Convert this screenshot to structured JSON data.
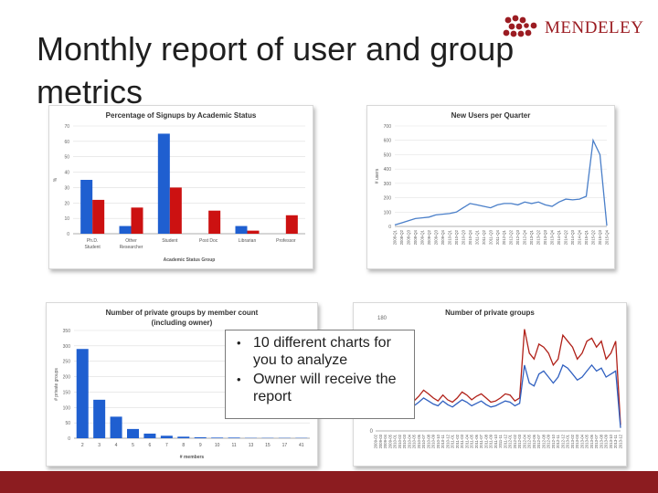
{
  "slide": {
    "title": "Monthly report of user and group metrics",
    "brand": "MENDELEY",
    "brand_color": "#9b1c22",
    "footer_color": "#8c1c20",
    "callout_items": [
      "10 different charts for you to analyze",
      "Owner will receive the report"
    ]
  },
  "chart_data": [
    {
      "type": "bar",
      "title": "Percentage of Signups by Academic Status",
      "xlabel": "Academic Status Group",
      "ylabel": "%",
      "ylim": [
        0,
        70
      ],
      "yticks": [
        0,
        10,
        20,
        30,
        40,
        50,
        60,
        70
      ],
      "categories": [
        "Ph.D. Student",
        "Other Researcher",
        "Student",
        "Post Doc",
        "Librarian",
        "Professor"
      ],
      "series": [
        {
          "color": "#1f5fd0",
          "values": [
            35,
            5,
            65,
            0,
            5,
            0
          ]
        },
        {
          "color": "#cc1111",
          "values": [
            22,
            17,
            30,
            15,
            2,
            12
          ]
        }
      ],
      "grid": true
    },
    {
      "type": "line",
      "title": "New Users per Quarter",
      "ylabel": "# users",
      "ylim": [
        0,
        700
      ],
      "yticks": [
        0,
        100,
        200,
        300,
        400,
        500,
        600,
        700
      ],
      "x": [
        "2008-Q1",
        "2008-Q2",
        "2008-Q3",
        "2008-Q4",
        "2009-Q1",
        "2009-Q2",
        "2009-Q3",
        "2009-Q4",
        "2010-Q1",
        "2010-Q2",
        "2010-Q3",
        "2010-Q4",
        "2011-Q1",
        "2011-Q2",
        "2011-Q3",
        "2011-Q4",
        "2012-Q1",
        "2012-Q2",
        "2012-Q3",
        "2012-Q4",
        "2013-Q1",
        "2013-Q2",
        "2013-Q3",
        "2013-Q4",
        "2014-Q1",
        "2014-Q2",
        "2014-Q3",
        "2014-Q4",
        "2015-Q1",
        "2015-Q2",
        "2015-Q3",
        "2015-Q4"
      ],
      "series": [
        {
          "color": "#4a7fc9",
          "values": [
            10,
            25,
            40,
            55,
            60,
            65,
            80,
            85,
            90,
            100,
            130,
            160,
            150,
            140,
            130,
            150,
            160,
            160,
            150,
            170,
            160,
            170,
            150,
            140,
            170,
            190,
            185,
            190,
            210,
            600,
            500,
            5
          ]
        }
      ],
      "grid": true
    },
    {
      "type": "bar",
      "title": "Number of private groups by member count (including owner)",
      "xlabel": "# members",
      "ylabel": "# private groups",
      "ylim": [
        0,
        350
      ],
      "yticks": [
        0,
        50,
        100,
        150,
        200,
        250,
        300,
        350
      ],
      "categories": [
        "2",
        "3",
        "4",
        "5",
        "6",
        "7",
        "8",
        "9",
        "10",
        "11",
        "13",
        "15",
        "17",
        "41"
      ],
      "series": [
        {
          "color": "#1f5fd0",
          "values": [
            290,
            125,
            70,
            30,
            15,
            8,
            5,
            3,
            2,
            2,
            1,
            1,
            1,
            1
          ]
        }
      ],
      "grid": true
    },
    {
      "type": "line",
      "title": "Number of private groups",
      "ylabel": "",
      "ylim": [
        0,
        180
      ],
      "ytick_labels": [
        "0",
        "180"
      ],
      "x": [
        "2009-02",
        "2009-03",
        "2009-04",
        "2009-05",
        "2010-01",
        "2010-02",
        "2010-03",
        "2010-04",
        "2010-05",
        "2010-06",
        "2010-07",
        "2010-08",
        "2010-09",
        "2010-10",
        "2010-11",
        "2010-12",
        "2011-01",
        "2011-02",
        "2011-03",
        "2011-04",
        "2011-05",
        "2011-06",
        "2011-07",
        "2011-08",
        "2011-09",
        "2011-10",
        "2011-11",
        "2011-12",
        "2012-01",
        "2012-02",
        "2012-03",
        "2012-04",
        "2012-05",
        "2012-06",
        "2012-07",
        "2012-08",
        "2012-09",
        "2012-10",
        "2012-11",
        "2012-12",
        "2013-01",
        "2013-02",
        "2013-03",
        "2013-04",
        "2013-05",
        "2013-06",
        "2013-07",
        "2013-08",
        "2013-09",
        "2013-10",
        "2013-11",
        "2013-12"
      ],
      "series": [
        {
          "color": "#b02018",
          "values": [
            60,
            58,
            70,
            65,
            55,
            50,
            45,
            62,
            50,
            58,
            68,
            62,
            55,
            50,
            60,
            52,
            48,
            55,
            65,
            60,
            52,
            58,
            62,
            55,
            48,
            50,
            55,
            62,
            60,
            50,
            55,
            170,
            130,
            120,
            145,
            140,
            130,
            110,
            120,
            160,
            150,
            140,
            120,
            130,
            150,
            155,
            140,
            150,
            120,
            130,
            150,
            10
          ]
        },
        {
          "color": "#3060c0",
          "values": [
            50,
            48,
            55,
            52,
            45,
            42,
            40,
            50,
            42,
            48,
            55,
            50,
            45,
            42,
            50,
            44,
            40,
            46,
            52,
            48,
            42,
            46,
            50,
            44,
            40,
            42,
            46,
            50,
            48,
            42,
            46,
            110,
            80,
            75,
            95,
            100,
            90,
            80,
            90,
            110,
            105,
            95,
            85,
            90,
            100,
            110,
            100,
            105,
            90,
            95,
            100,
            5
          ]
        }
      ],
      "grid": false
    }
  ]
}
